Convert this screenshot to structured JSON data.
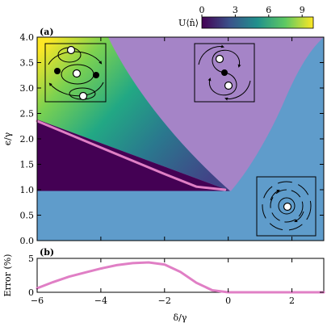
{
  "chart_data": [
    {
      "type": "area",
      "panel_label": "(a)",
      "xlabel": "δ/γ",
      "ylabel": "ϵ/γ",
      "xlim": [
        -6,
        3
      ],
      "ylim": [
        0,
        4
      ],
      "x_ticks": [
        "−6",
        "−4",
        "−2",
        "0",
        "2"
      ],
      "y_ticks": [
        "0.0",
        "0.5",
        "1.0",
        "1.5",
        "2.0",
        "2.5",
        "3.0",
        "3.5",
        "4.0"
      ],
      "colorbar": {
        "label": "U⟨n̂⟩",
        "range": [
          0,
          10
        ],
        "ticks": [
          "0",
          "3",
          "6",
          "9"
        ],
        "colormap": "viridis"
      },
      "regions": [
        {
          "id": "blue",
          "color": "#5f9ccb",
          "x_range": [
            -6,
            3
          ],
          "y_range": [
            0,
            1
          ]
        },
        {
          "id": "purple",
          "color": "#a584c7"
        },
        {
          "id": "bistable",
          "colormap": "viridis",
          "value_range": [
            0,
            10
          ]
        }
      ],
      "boundary_line": {
        "color": "#e07fc5",
        "x": [
          -6,
          -5,
          -4,
          -3,
          -2,
          -1,
          -0.1
        ],
        "y": [
          2.35,
          2.09,
          1.83,
          1.57,
          1.31,
          1.06,
          1.0
        ]
      },
      "colors": {
        "blue_phase": "#5f9ccb",
        "purple_phase": "#a584c7",
        "line": "#e07fc5"
      }
    },
    {
      "type": "line",
      "panel_label": "(b)",
      "xlabel": "δ/γ",
      "ylabel": "Error (%)",
      "xlim": [
        -6,
        3
      ],
      "ylim": [
        0,
        5
      ],
      "x_ticks": [
        "−6",
        "−4",
        "−2",
        "0",
        "2"
      ],
      "y_ticks": [
        "0",
        "5"
      ],
      "series": [
        {
          "color": "#e07fc5",
          "x": [
            -6,
            -5.5,
            -5,
            -4.5,
            -4,
            -3.5,
            -3,
            -2.5,
            -2,
            -1.5,
            -1,
            -0.5,
            0,
            0.5,
            1,
            2,
            3
          ],
          "y": [
            0.6,
            1.5,
            2.3,
            2.9,
            3.5,
            4.0,
            4.3,
            4.4,
            4.1,
            3.0,
            1.4,
            0.3,
            0,
            0,
            0,
            0,
            0
          ]
        }
      ]
    }
  ]
}
